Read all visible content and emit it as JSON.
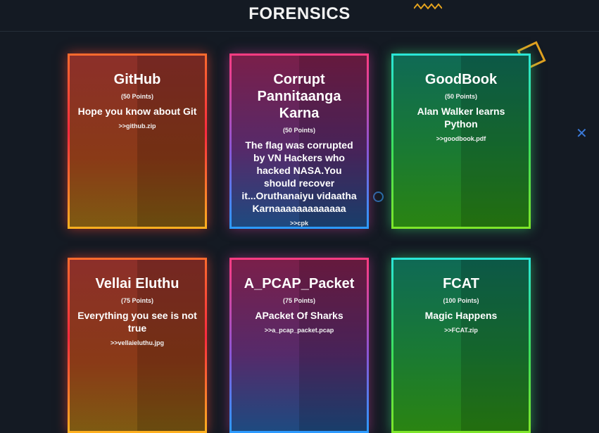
{
  "header": {
    "title": "FORENSICS"
  },
  "challenges": [
    {
      "title": "GitHub",
      "points": "(50 Points)",
      "description": "Hope you know about Git",
      "file": ">>github.zip"
    },
    {
      "title": "Corrupt Pannitaanga Karna",
      "points": "(50 Points)",
      "description": "The flag was corrupted by VN Hackers who hacked NASA.You should recover it...Oruthanaiyu vidaatha Karnaaaaaaaaaaaaa",
      "file": ">>cpk"
    },
    {
      "title": "GoodBook",
      "points": "(50 Points)",
      "description": "Alan Walker learns Python",
      "file": ">>goodbook.pdf"
    },
    {
      "title": "Vellai Eluthu",
      "points": "(75 Points)",
      "description": "Everything you see is not true",
      "file": ">>vellaieluthu.jpg"
    },
    {
      "title": "A_PCAP_Packet",
      "points": "(75 Points)",
      "description": "APacket Of Sharks",
      "file": ">>a_pcap_packet.pcap"
    },
    {
      "title": "FCAT",
      "points": "(100 Points)",
      "description": "Magic Happens",
      "file": ">>FCAT.zip"
    }
  ]
}
